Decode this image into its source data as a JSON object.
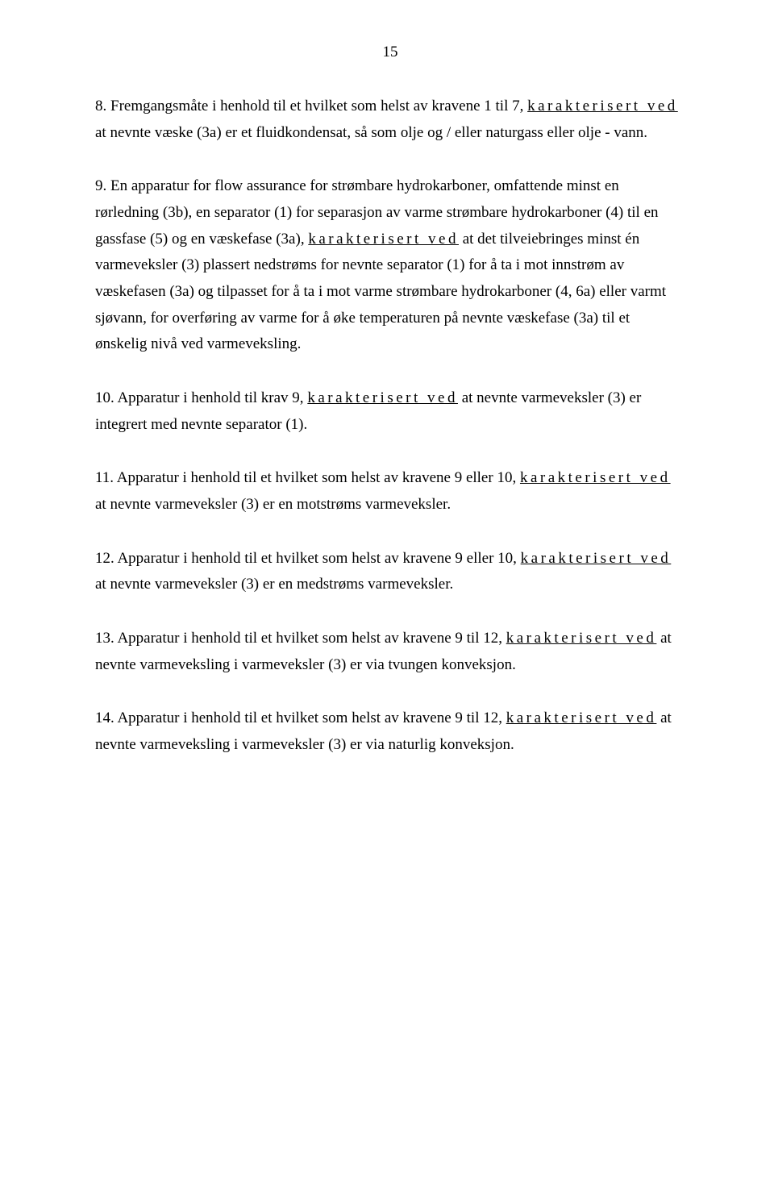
{
  "pageNumber": "15",
  "paragraphs": [
    {
      "prefix": "8. Fremgangsmåte i henhold til et hvilket som helst av kravene 1 til 7, ",
      "spaced": "karakterisert ved",
      "suffix": " at nevnte væske (3a) er et fluidkondensat, så som olje og / eller naturgass eller olje - vann."
    },
    {
      "prefix": "9. En apparatur for flow assurance for strømbare hydrokarboner, omfattende minst en rørledning (3b), en separator (1) for separasjon av varme strømbare hydrokarboner (4) til en gassfase (5) og en væskefase (3a), ",
      "spaced": "karakterisert ved",
      "suffix": " at det tilveiebringes minst én varmeveksler (3) plassert nedstrøms for nevnte separator (1) for å ta i mot innstrøm av væskefasen (3a) og tilpasset for å ta i mot varme strømbare hydrokarboner (4, 6a) eller varmt sjøvann, for overføring av varme for å øke temperaturen på nevnte væskefase (3a) til et ønskelig nivå ved varmeveksling."
    },
    {
      "prefix": "10. Apparatur i henhold til krav 9, ",
      "spaced": "karakterisert ved",
      "suffix": " at nevnte varmeveksler (3) er integrert med nevnte separator (1)."
    },
    {
      "prefix": "11. Apparatur i henhold til et hvilket som helst av kravene 9 eller 10, ",
      "spaced": "karakterisert ved",
      "suffix": " at nevnte varmeveksler (3) er en motstrøms varmeveksler."
    },
    {
      "prefix": "12. Apparatur i henhold til et hvilket som helst av kravene 9 eller 10, ",
      "spaced": "karakterisert ved",
      "suffix": " at nevnte varmeveksler (3) er en medstrøms varmeveksler."
    },
    {
      "prefix": "13. Apparatur i henhold til et hvilket som helst av kravene 9 til 12, ",
      "spaced": "karakterisert ved",
      "suffix": " at nevnte varmeveksling i varmeveksler (3) er via tvungen konveksjon."
    },
    {
      "prefix": "14. Apparatur i henhold til et hvilket som helst av kravene 9 til 12, ",
      "spaced": "karakterisert ved",
      "suffix": " at nevnte varmeveksling i varmeveksler (3) er via naturlig konveksjon."
    }
  ]
}
